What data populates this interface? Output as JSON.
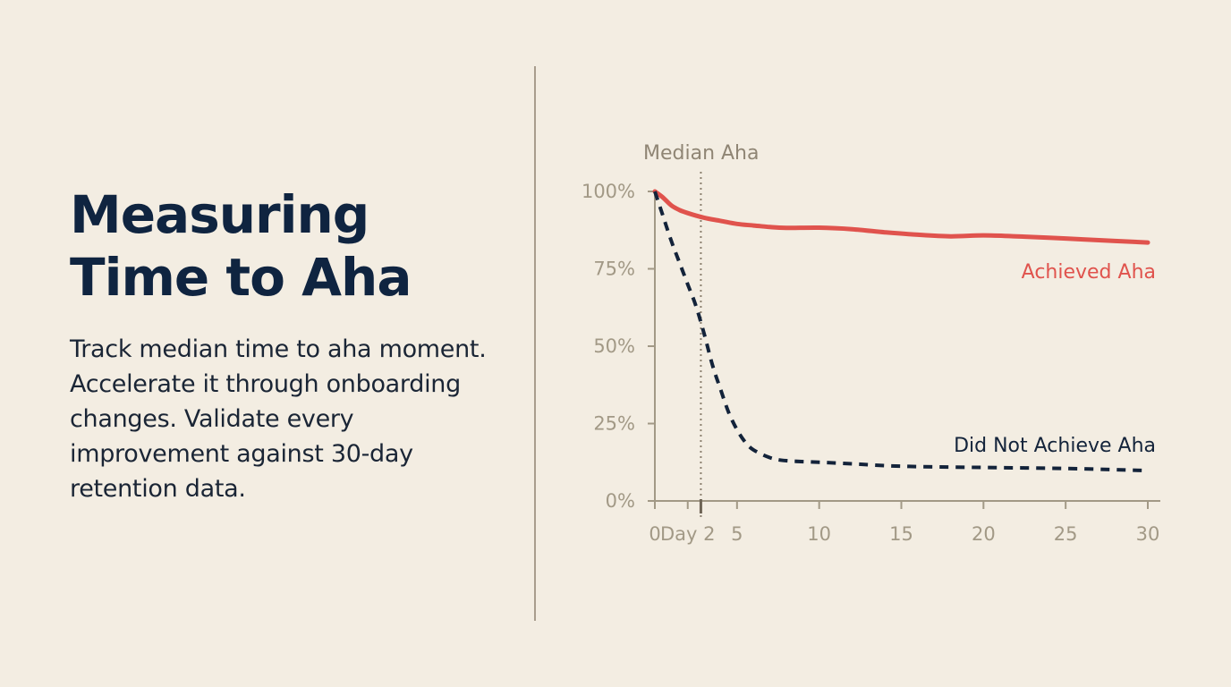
{
  "slide": {
    "title_line1": "Measuring",
    "title_line2": "Time to Aha",
    "body": "Track median time to aha moment. Accelerate it through onboarding changes. Validate every improvement against 30-day retention data."
  },
  "colors": {
    "background": "#f3ede2",
    "title": "#0f2440",
    "achieved": "#e0534d",
    "not_achieved": "#13233a",
    "axis": "#a29986",
    "median_marker": "#8c8170"
  },
  "chart_data": {
    "type": "line",
    "xlabel": "",
    "ylabel": "",
    "xlim": [
      0,
      30
    ],
    "ylim": [
      0,
      100
    ],
    "x_ticks": [
      {
        "value": 0,
        "label": "0"
      },
      {
        "value": 2,
        "label": "Day 2"
      },
      {
        "value": 5,
        "label": "5"
      },
      {
        "value": 10,
        "label": "10"
      },
      {
        "value": 15,
        "label": "15"
      },
      {
        "value": 20,
        "label": "20"
      },
      {
        "value": 25,
        "label": "25"
      },
      {
        "value": 30,
        "label": "30"
      }
    ],
    "y_ticks": [
      {
        "value": 0,
        "label": "0%"
      },
      {
        "value": 25,
        "label": "25%"
      },
      {
        "value": 50,
        "label": "50%"
      },
      {
        "value": 75,
        "label": "75%"
      },
      {
        "value": 100,
        "label": "100%"
      }
    ],
    "median_marker": {
      "x": 2.8,
      "label": "Median Aha"
    },
    "series": [
      {
        "name": "Achieved Aha",
        "style": "solid",
        "color": "#e0534d",
        "points": [
          [
            0,
            100
          ],
          [
            0.5,
            98
          ],
          [
            1,
            95.5
          ],
          [
            1.5,
            94
          ],
          [
            2,
            93
          ],
          [
            3,
            91.5
          ],
          [
            4,
            90.5
          ],
          [
            5,
            89.5
          ],
          [
            6,
            89
          ],
          [
            7,
            88.5
          ],
          [
            8,
            88.2
          ],
          [
            10,
            88.3
          ],
          [
            12,
            87.8
          ],
          [
            14,
            86.8
          ],
          [
            16,
            86
          ],
          [
            18,
            85.5
          ],
          [
            20,
            85.8
          ],
          [
            22,
            85.5
          ],
          [
            25,
            84.8
          ],
          [
            28,
            84
          ],
          [
            30,
            83.5
          ]
        ]
      },
      {
        "name": "Did Not Achieve Aha",
        "style": "dashed",
        "color": "#13233a",
        "points": [
          [
            0,
            100
          ],
          [
            0.5,
            92
          ],
          [
            1,
            84
          ],
          [
            1.5,
            77
          ],
          [
            2,
            70
          ],
          [
            2.5,
            63
          ],
          [
            3,
            54
          ],
          [
            3.5,
            44
          ],
          [
            4,
            36
          ],
          [
            4.5,
            28.5
          ],
          [
            5,
            23
          ],
          [
            5.5,
            19
          ],
          [
            6,
            16.5
          ],
          [
            7,
            14
          ],
          [
            8,
            13
          ],
          [
            10,
            12.5
          ],
          [
            12,
            12
          ],
          [
            15,
            11.2
          ],
          [
            20,
            10.8
          ],
          [
            25,
            10.5
          ],
          [
            30,
            9.8
          ]
        ]
      }
    ]
  }
}
